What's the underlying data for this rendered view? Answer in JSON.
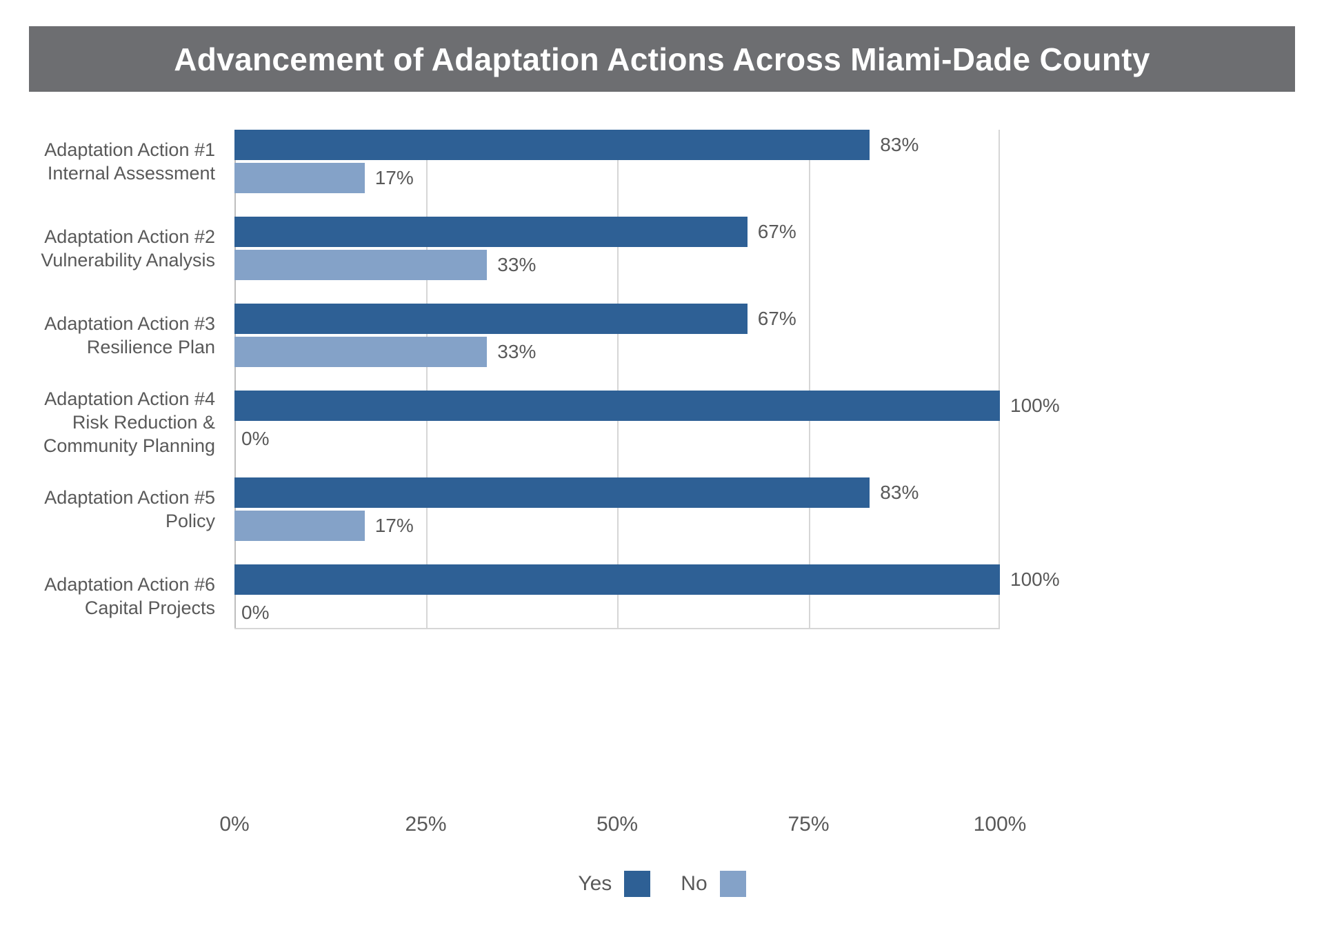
{
  "title": "Advancement of Adaptation Actions Across Miami-Dade County",
  "colors": {
    "title_bar_bg": "#6D6E71",
    "title_text": "#FFFFFF",
    "yes": "#2E6095",
    "no": "#84A2C8",
    "grid": "#D6D6D6",
    "axis": "#BDBDBD",
    "text": "#595959"
  },
  "chart_data": {
    "type": "bar",
    "orientation": "horizontal",
    "title": "Advancement of Adaptation Actions Across Miami-Dade County",
    "categories": [
      [
        "Adaptation Action #1",
        "Internal Assessment"
      ],
      [
        "Adaptation Action #2",
        "Vulnerability Analysis"
      ],
      [
        "Adaptation Action #3",
        "Resilience Plan"
      ],
      [
        "Adaptation Action #4",
        "Risk Reduction &",
        "Community Planning"
      ],
      [
        "Adaptation Action #5",
        "Policy"
      ],
      [
        "Adaptation Action #6",
        "Capital Projects"
      ]
    ],
    "series": [
      {
        "name": "Yes",
        "color": "#2E6095",
        "values": [
          83,
          67,
          67,
          100,
          83,
          100
        ]
      },
      {
        "name": "No",
        "color": "#84A2C8",
        "values": [
          17,
          33,
          33,
          0,
          17,
          0
        ]
      }
    ],
    "value_suffix": "%",
    "x_tick_labels": [
      "0%",
      "25%",
      "50%",
      "75%",
      "100%"
    ],
    "xlim": [
      0,
      100
    ],
    "grid": true,
    "legend_position": "bottom"
  }
}
